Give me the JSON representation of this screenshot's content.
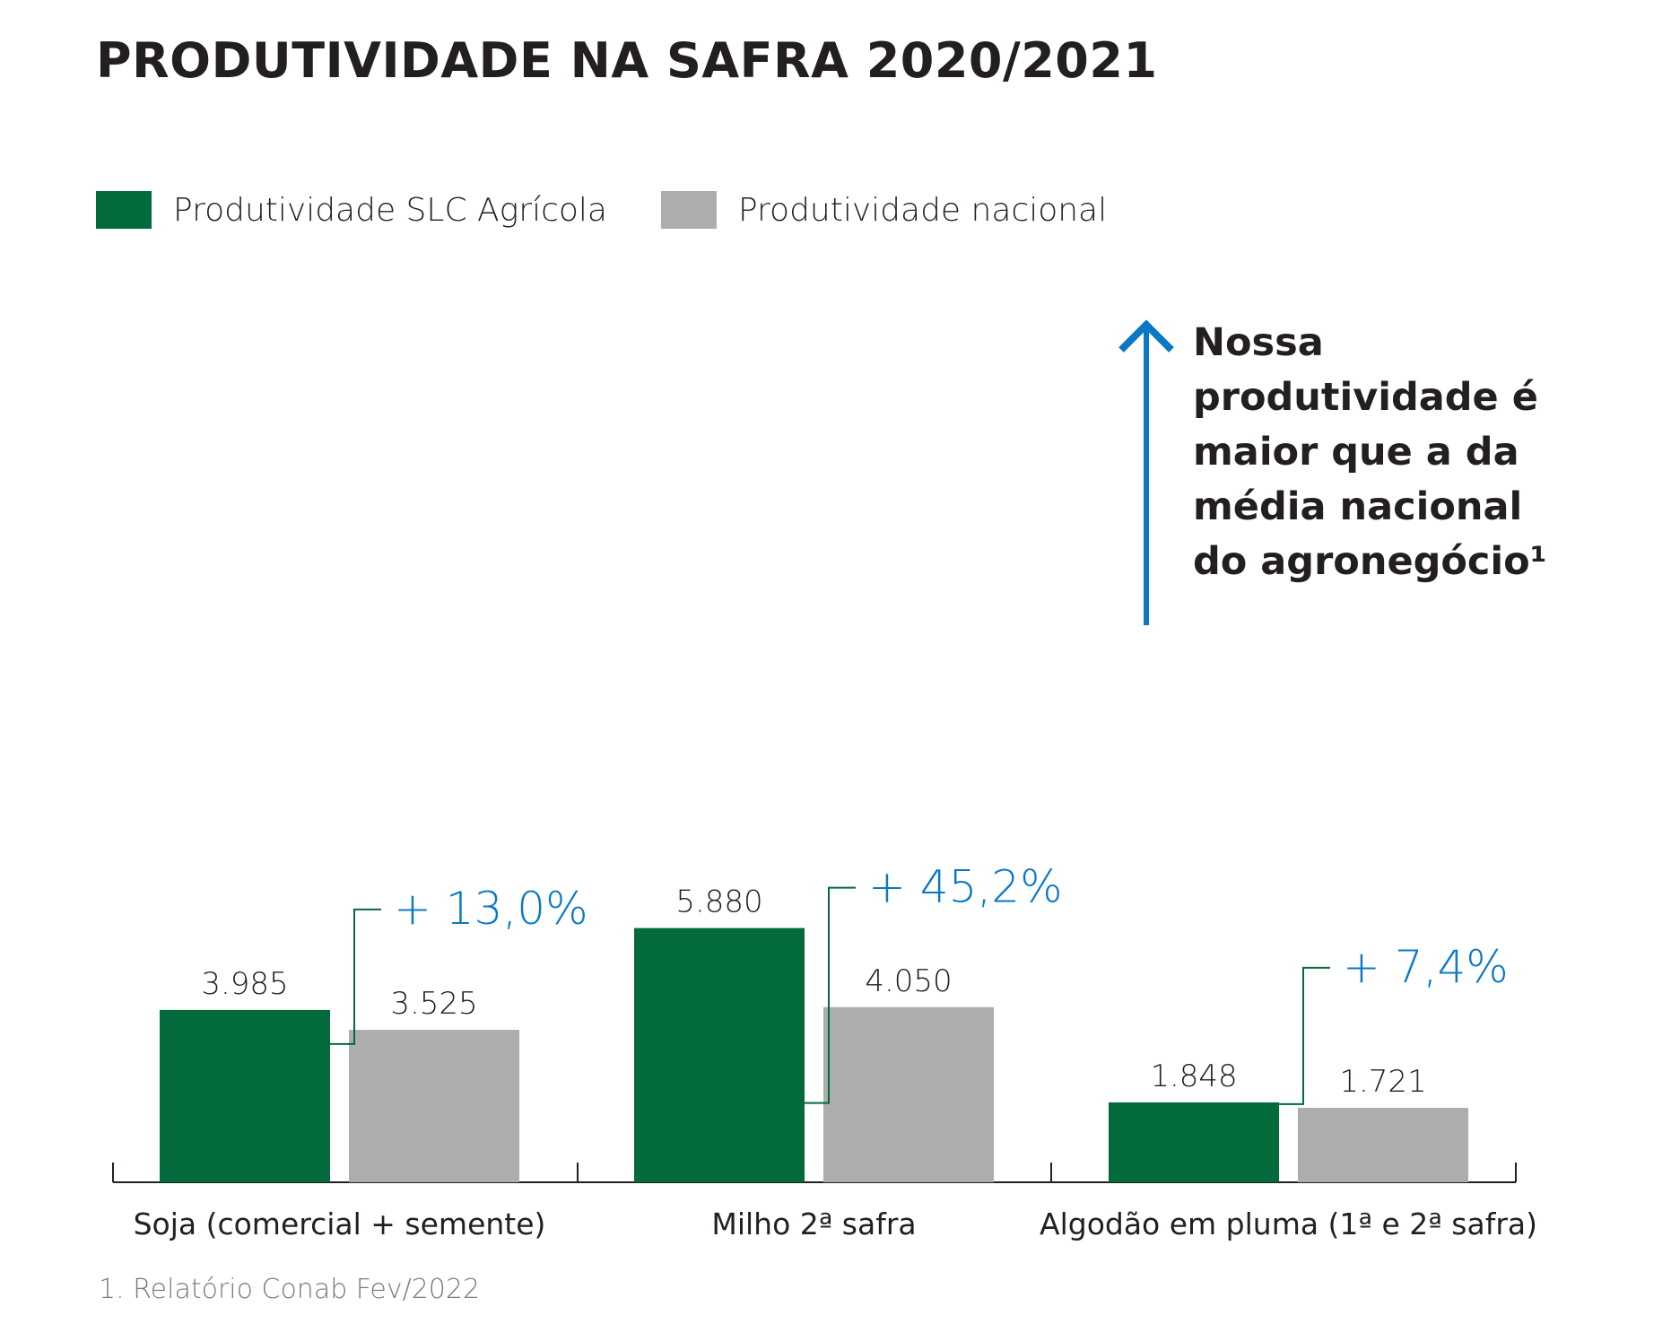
{
  "title": "PRODUTIVIDADE NA SAFRA 2020/2021",
  "colors": {
    "slc": "#036b3b",
    "national": "#adadad",
    "accent": "#0a78c6",
    "connector": "#036b3b",
    "axis": "#231f20"
  },
  "legend": [
    {
      "label": "Produtividade SLC Agrícola",
      "color": "#036b3b"
    },
    {
      "label": "Produtividade nacional",
      "color": "#adadad"
    }
  ],
  "highlight": {
    "icon": "arrow-up-icon",
    "text": "Nossa produtividade é maior que a da média nacional do agronegócio¹"
  },
  "footnote": "1. Relatório Conab Fev/2022",
  "chart_data": {
    "type": "bar",
    "categories": [
      "Soja (comercial + semente)",
      "Milho 2ª safra",
      "Algodão em pluma (1ª e 2ª safra)"
    ],
    "series": [
      {
        "name": "Produtividade SLC Agrícola",
        "values": [
          3985,
          5880,
          1848
        ],
        "labels": [
          "3.985",
          "5.880",
          "1.848"
        ]
      },
      {
        "name": "Produtividade nacional",
        "values": [
          3525,
          4050,
          1721
        ],
        "labels": [
          "3.525",
          "4.050",
          "1.721"
        ]
      }
    ],
    "annotations": [
      "+ 13,0%",
      "+ 45,2%",
      "+ 7,4%"
    ],
    "grid": false,
    "legend_position": "top-left"
  }
}
